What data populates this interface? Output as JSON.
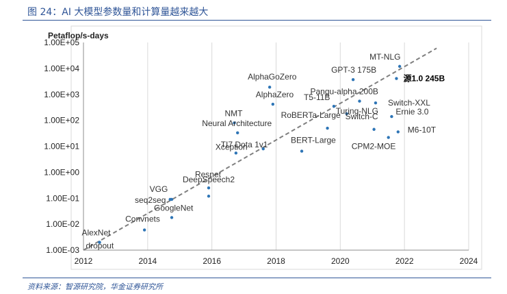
{
  "figure": {
    "title": "图 24：AI 大模型参数量和计算量越来越大",
    "source": "资料来源：智源研究院，华金证券研究所"
  },
  "chart_data": {
    "type": "scatter",
    "title": "",
    "ylabel": "Petaflop/s-days",
    "xlabel": "",
    "xlim": [
      2012,
      2024
    ],
    "ylim_log10": [
      -3,
      5
    ],
    "yscale": "log",
    "x_ticks": [
      "2012",
      "2014",
      "2016",
      "2018",
      "2020",
      "2022",
      "2024"
    ],
    "y_ticks": [
      "1.00E-03",
      "1.00E-02",
      "1.00E-01",
      "1.00E+00",
      "1.00E+01",
      "1.00E+02",
      "1.00E+03",
      "1.00E+04",
      "1.00E+05"
    ],
    "grid": "vertical",
    "point_color": "#2e75b6",
    "trend_color": "#7f7f7f",
    "trend": {
      "start": [
        2012,
        0.001
      ],
      "end": [
        2023,
        60000
      ]
    },
    "points": [
      {
        "label": "AlexNet",
        "x": 2012.5,
        "y": 0.002,
        "bold": false
      },
      {
        "label": "dropout",
        "x": 2012.5,
        "y": 0.002,
        "bold": false
      },
      {
        "label": "Convnets",
        "x": 2013.9,
        "y": 0.006,
        "bold": false
      },
      {
        "label": "VGG",
        "x": 2014.7,
        "y": 0.09,
        "bold": false
      },
      {
        "label": "seq2seq",
        "x": 2014.75,
        "y": 0.09,
        "bold": false
      },
      {
        "label": "GoogleNet",
        "x": 2014.75,
        "y": 0.018,
        "bold": false
      },
      {
        "label": "DeepSpeech2",
        "x": 2015.9,
        "y": 0.25,
        "bold": false
      },
      {
        "label": "Resnet",
        "x": 2015.9,
        "y": 0.12,
        "bold": false
      },
      {
        "label": "Xception",
        "x": 2016.75,
        "y": 5.5,
        "bold": false
      },
      {
        "label": "Neural Architecture",
        "x": 2016.8,
        "y": 33,
        "bold": false
      },
      {
        "label": "NMT",
        "x": 2016.7,
        "y": 80,
        "bold": false
      },
      {
        "label": "TI7 Dota 1v1",
        "x": 2017.6,
        "y": 8,
        "bold": false
      },
      {
        "label": "AlphaGoZero",
        "x": 2017.8,
        "y": 1900,
        "bold": false
      },
      {
        "label": "AlphaZero",
        "x": 2017.9,
        "y": 420,
        "bold": false
      },
      {
        "label": "BERT-Large",
        "x": 2018.8,
        "y": 6.5,
        "bold": false
      },
      {
        "label": "RoBERTa-Large",
        "x": 2019.6,
        "y": 50,
        "bold": false
      },
      {
        "label": "T5-11B",
        "x": 2019.8,
        "y": 350,
        "bold": false
      },
      {
        "label": "GPT-3 175B",
        "x": 2020.4,
        "y": 3700,
        "bold": false
      },
      {
        "label": "Pangu-alpha 200B",
        "x": 2020.6,
        "y": 550,
        "bold": false
      },
      {
        "label": "Turing-NLG",
        "x": 2020.2,
        "y": 180,
        "bold": false
      },
      {
        "label": "Switch-C",
        "x": 2021.05,
        "y": 45,
        "bold": false
      },
      {
        "label": "Switch-XXL",
        "x": 2021.1,
        "y": 470,
        "bold": false
      },
      {
        "label": "CPM2-MOE",
        "x": 2021.5,
        "y": 22,
        "bold": false
      },
      {
        "label": "Ernie 3.0",
        "x": 2021.6,
        "y": 140,
        "bold": false
      },
      {
        "label": "M6-10T",
        "x": 2021.8,
        "y": 36,
        "bold": false
      },
      {
        "label": "MT-NLG",
        "x": 2021.85,
        "y": 12000,
        "bold": false
      },
      {
        "label": "源1.0 245B",
        "x": 2021.75,
        "y": 4100,
        "bold": true
      }
    ]
  }
}
